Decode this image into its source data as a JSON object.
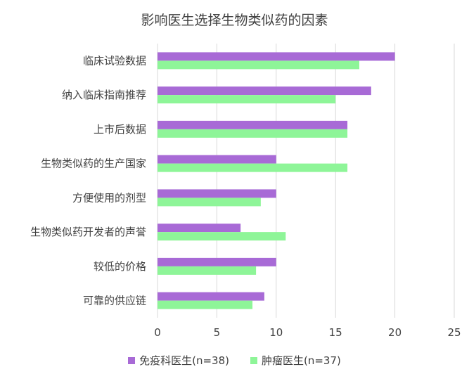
{
  "chart_data": {
    "type": "bar",
    "orientation": "horizontal",
    "title": "影响医生选择生物类似药的因素",
    "categories": [
      "临床试验数据",
      "纳入临床指南推荐",
      "上市后数据",
      "生物类似药的生产国家",
      "方便使用的剂型",
      "生物类似药开发者的声誉",
      "较低的价格",
      "可靠的供应链"
    ],
    "series": [
      {
        "name": "免疫科医生(n=38)",
        "color": "#a86ad6",
        "values": [
          20,
          18,
          16,
          10,
          10,
          7,
          10,
          9
        ]
      },
      {
        "name": "肿瘤医生(n=37)",
        "color": "#8ef598",
        "values": [
          17,
          15,
          16,
          16,
          8.7,
          10.8,
          8.3,
          8
        ]
      }
    ],
    "xlim": [
      0,
      25
    ],
    "xticks": [
      "0",
      "5",
      "10",
      "15",
      "20",
      "25"
    ],
    "grid": true,
    "legend_position": "bottom"
  }
}
